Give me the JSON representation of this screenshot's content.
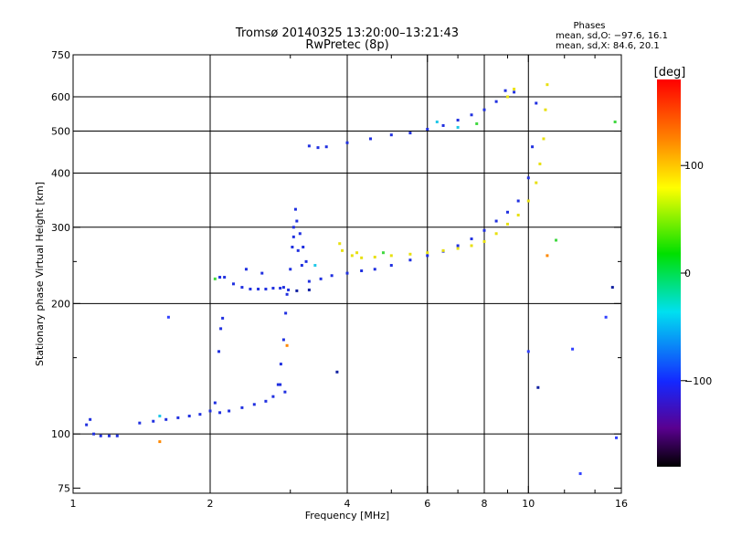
{
  "chart_data": {
    "type": "scatter",
    "title": "Tromsø 20140325 13:20:00–13:21:43",
    "subtitle": "RwPretec (8p)",
    "phases": {
      "header": "Phases",
      "line_o": "mean, sd,O:  −97.6, 16.1",
      "line_x": "mean, sd,X:  84.6, 20.1"
    },
    "xlabel": "Frequency [MHz]",
    "ylabel": "Stationary phase Virtual Height [km]",
    "x_scale": "log",
    "y_scale": "log",
    "xlim": [
      1,
      16
    ],
    "ylim": [
      73,
      750
    ],
    "x_ticks": [
      1,
      2,
      4,
      6,
      8,
      10,
      16
    ],
    "x_tick_labels": [
      "1",
      "2",
      "4",
      "6",
      "8",
      "10",
      "16"
    ],
    "y_ticks": [
      75,
      100,
      200,
      300,
      400,
      500,
      600,
      750
    ],
    "y_tick_labels": [
      "75",
      "100",
      "200",
      "300",
      "400",
      "500",
      "600",
      "750"
    ],
    "x_minor_ticks": [
      3,
      5,
      7,
      9,
      12,
      14
    ],
    "y_minor_ticks": [
      150,
      250
    ],
    "grid_x": [
      2,
      4,
      6,
      8,
      10
    ],
    "grid_y": [
      100,
      200,
      300,
      400,
      500,
      600
    ],
    "colorbar": {
      "label": "[deg]",
      "ticks": [
        100,
        0,
        -100
      ],
      "tick_labels": [
        "100",
        "0",
        "−100"
      ],
      "range": [
        -180,
        180
      ]
    },
    "series": [
      {
        "color": "#2030e0",
        "points": [
          [
            1.07,
            105
          ],
          [
            1.09,
            108
          ],
          [
            1.11,
            100
          ],
          [
            1.15,
            99
          ],
          [
            1.2,
            99
          ],
          [
            1.25,
            99
          ],
          [
            1.4,
            106
          ],
          [
            1.5,
            107
          ],
          [
            1.6,
            108
          ],
          [
            1.7,
            109
          ],
          [
            1.8,
            110
          ],
          [
            1.9,
            111
          ],
          [
            2.0,
            113
          ],
          [
            2.05,
            118
          ],
          [
            2.1,
            112
          ],
          [
            2.2,
            113
          ],
          [
            2.35,
            115
          ],
          [
            2.5,
            117
          ],
          [
            2.65,
            119
          ],
          [
            2.75,
            122
          ],
          [
            2.82,
            130
          ],
          [
            2.86,
            145
          ],
          [
            2.9,
            165
          ],
          [
            2.93,
            190
          ],
          [
            2.95,
            210
          ],
          [
            2.09,
            155
          ],
          [
            2.11,
            175
          ],
          [
            2.13,
            185
          ],
          [
            2.1,
            230
          ],
          [
            2.15,
            230
          ],
          [
            2.25,
            222
          ],
          [
            2.35,
            218
          ],
          [
            2.45,
            216
          ],
          [
            2.55,
            216
          ],
          [
            2.65,
            216
          ],
          [
            2.75,
            217
          ],
          [
            2.85,
            217
          ],
          [
            2.9,
            218
          ],
          [
            2.4,
            240
          ],
          [
            2.6,
            235
          ],
          [
            2.97,
            215
          ],
          [
            3.0,
            240
          ],
          [
            3.03,
            270
          ],
          [
            3.05,
            300
          ],
          [
            3.08,
            330
          ],
          [
            3.1,
            310
          ],
          [
            3.15,
            290
          ],
          [
            3.2,
            270
          ],
          [
            3.25,
            250
          ],
          [
            3.3,
            225
          ],
          [
            3.5,
            228
          ],
          [
            3.7,
            232
          ],
          [
            4.0,
            235
          ],
          [
            4.3,
            238
          ],
          [
            4.6,
            240
          ],
          [
            5.0,
            245
          ],
          [
            5.5,
            252
          ],
          [
            6.0,
            258
          ],
          [
            6.5,
            264
          ],
          [
            7.0,
            272
          ],
          [
            7.5,
            282
          ],
          [
            8.0,
            295
          ],
          [
            8.5,
            310
          ],
          [
            9.0,
            325
          ],
          [
            9.5,
            345
          ],
          [
            10.0,
            390
          ],
          [
            10.2,
            460
          ],
          [
            10.4,
            580
          ],
          [
            3.6,
            460
          ],
          [
            4.0,
            470
          ],
          [
            4.5,
            480
          ],
          [
            5.0,
            490
          ],
          [
            5.5,
            495
          ],
          [
            6.0,
            505
          ],
          [
            6.5,
            515
          ],
          [
            7.0,
            530
          ],
          [
            7.5,
            545
          ],
          [
            8.0,
            560
          ],
          [
            8.5,
            585
          ],
          [
            8.9,
            620
          ],
          [
            9.3,
            615
          ],
          [
            3.3,
            462
          ],
          [
            3.45,
            458
          ],
          [
            2.85,
            130
          ],
          [
            2.92,
            125
          ],
          [
            3.05,
            285
          ],
          [
            3.12,
            265
          ],
          [
            3.18,
            245
          ]
        ]
      },
      {
        "color": "#e8e010",
        "points": [
          [
            3.9,
            265
          ],
          [
            4.1,
            258
          ],
          [
            4.3,
            255
          ],
          [
            4.6,
            256
          ],
          [
            5.0,
            258
          ],
          [
            5.5,
            260
          ],
          [
            6.0,
            262
          ],
          [
            6.5,
            265
          ],
          [
            7.0,
            268
          ],
          [
            7.5,
            272
          ],
          [
            8.0,
            278
          ],
          [
            8.5,
            290
          ],
          [
            9.0,
            305
          ],
          [
            9.5,
            320
          ],
          [
            10.0,
            345
          ],
          [
            10.4,
            380
          ],
          [
            10.6,
            420
          ],
          [
            10.8,
            480
          ],
          [
            10.9,
            560
          ],
          [
            11.0,
            640
          ],
          [
            9.0,
            600
          ],
          [
            9.3,
            625
          ],
          [
            3.85,
            275
          ],
          [
            4.2,
            262
          ]
        ]
      },
      {
        "color": "#40d840",
        "points": [
          [
            2.05,
            228
          ],
          [
            4.8,
            262
          ],
          [
            7.7,
            520
          ],
          [
            11.5,
            280
          ],
          [
            15.5,
            525
          ]
        ]
      },
      {
        "color": "#20c8e8",
        "points": [
          [
            1.55,
            110
          ],
          [
            6.3,
            525
          ],
          [
            7.0,
            510
          ],
          [
            3.4,
            245
          ]
        ]
      },
      {
        "color": "#1020a0",
        "points": [
          [
            3.1,
            214
          ],
          [
            3.3,
            215
          ],
          [
            3.8,
            139
          ],
          [
            10.5,
            128
          ],
          [
            15.3,
            218
          ]
        ]
      },
      {
        "color": "#ff8800",
        "points": [
          [
            1.55,
            96
          ],
          [
            11.0,
            258
          ],
          [
            2.95,
            160
          ]
        ]
      },
      {
        "color": "#3040ff",
        "points": [
          [
            1.62,
            186
          ],
          [
            10.0,
            155
          ],
          [
            12.5,
            157
          ],
          [
            13.0,
            81
          ],
          [
            15.6,
            98
          ],
          [
            14.8,
            186
          ]
        ]
      }
    ]
  }
}
